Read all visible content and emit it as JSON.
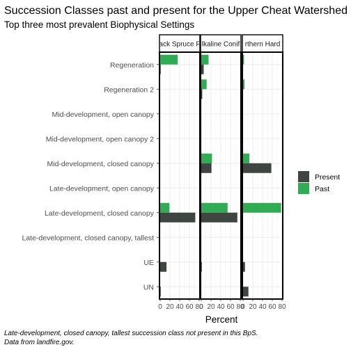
{
  "chart_data": {
    "type": "bar",
    "orientation": "horizontal",
    "title": "Succession Classes past and present for the Upper Cheat Watershed",
    "subtitle": "Top three most prevalent Biophysical Settings",
    "xlabel": "Percent",
    "ylabel": "",
    "xlim": [
      0,
      80
    ],
    "x_ticks": [
      0,
      20,
      40,
      60,
      80
    ],
    "grid": true,
    "legend_position": "right",
    "categories": [
      "Regeneration",
      "Regeneration 2",
      "Mid-development, open canopy",
      "Mid-development, open canopy 2",
      "Mid-development, closed canopy",
      "Late-development, open canopy",
      "Late-development, closed canopy",
      "Late-development, closed canopy, tallest",
      "UE",
      "UN"
    ],
    "panels": [
      {
        "strip_label": "Central and Southern Appalachian Red Spruce Forest",
        "strip_text_visible": "ack Spruce F",
        "series": [
          {
            "name": "Present",
            "color": "#3f4541",
            "values": [
              1,
              0,
              0,
              0,
              0,
              0,
              72,
              0,
              13,
              1
            ]
          },
          {
            "name": "Past",
            "color": "#32ab55",
            "values": [
              36,
              0,
              0,
              0,
              0,
              0,
              19,
              0,
              0,
              0
            ]
          }
        ]
      },
      {
        "strip_label": "Alkaline Conifer-Hardwood Forest",
        "strip_text_visible": "lkaline Conif",
        "series": [
          {
            "name": "Present",
            "color": "#3f4541",
            "values": [
              5,
              2,
              0,
              0,
              21,
              0,
              74,
              0,
              1,
              0
            ]
          },
          {
            "name": "Past",
            "color": "#32ab55",
            "values": [
              15,
              11,
              0,
              0,
              22,
              0,
              54,
              0,
              0,
              0
            ]
          }
        ]
      },
      {
        "strip_label": "Central and Southern Appalachian Northern Hardwood Forest",
        "strip_text_visible": "rthern Hard",
        "series": [
          {
            "name": "Present",
            "color": "#3f4541",
            "values": [
              0,
              0,
              0,
              0,
              58,
              0,
              0,
              0,
              4,
              11
            ]
          },
          {
            "name": "Past",
            "color": "#32ab55",
            "values": [
              2,
              3,
              0,
              0,
              13,
              0,
              78,
              0,
              0,
              0
            ]
          }
        ]
      }
    ],
    "legend": [
      {
        "name": "Present",
        "color": "#3f4541"
      },
      {
        "name": "Past",
        "color": "#32ab55"
      }
    ],
    "caption": [
      "Late-development, closed canopy, tallest succession class not present in this BpS.",
      "Data from landfire.gov."
    ]
  }
}
